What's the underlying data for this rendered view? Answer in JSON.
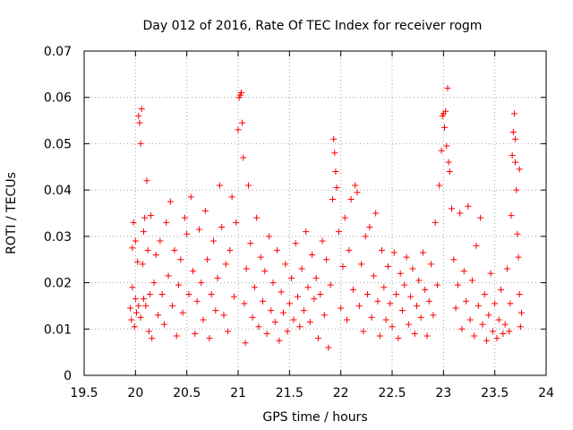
{
  "chart_data": {
    "type": "scatter",
    "title": "Day 012 of 2016, Rate Of TEC Index for receiver rogm",
    "xlabel": "GPS time / hours",
    "ylabel": "ROTI / TECUs",
    "xlim": [
      19.5,
      24
    ],
    "ylim": [
      0,
      0.07
    ],
    "xticks": [
      "19.5",
      "20",
      "20.5",
      "21",
      "21.5",
      "22",
      "22.5",
      "23",
      "23.5",
      "24"
    ],
    "yticks": [
      "0",
      "0.01",
      "0.02",
      "0.03",
      "0.04",
      "0.05",
      "0.06",
      "0.07"
    ],
    "grid": true,
    "marker": "+",
    "series": [
      {
        "name": "ROTI",
        "color": "#ff0000",
        "points": [
          [
            19.95,
            0.0145
          ],
          [
            19.96,
            0.012
          ],
          [
            19.97,
            0.0275
          ],
          [
            19.97,
            0.019
          ],
          [
            19.98,
            0.033
          ],
          [
            19.99,
            0.0105
          ],
          [
            20.0,
            0.0165
          ],
          [
            20.0,
            0.029
          ],
          [
            20.01,
            0.0135
          ],
          [
            20.02,
            0.0245
          ],
          [
            20.03,
            0.015
          ],
          [
            20.03,
            0.056
          ],
          [
            20.04,
            0.0545
          ],
          [
            20.05,
            0.05
          ],
          [
            20.05,
            0.0125
          ],
          [
            20.06,
            0.0575
          ],
          [
            20.07,
            0.024
          ],
          [
            20.08,
            0.031
          ],
          [
            20.08,
            0.0165
          ],
          [
            20.09,
            0.034
          ],
          [
            20.1,
            0.015
          ],
          [
            20.11,
            0.042
          ],
          [
            20.12,
            0.027
          ],
          [
            20.13,
            0.0095
          ],
          [
            20.14,
            0.0175
          ],
          [
            20.15,
            0.0345
          ],
          [
            20.16,
            0.008
          ],
          [
            20.18,
            0.02
          ],
          [
            20.2,
            0.026
          ],
          [
            20.22,
            0.013
          ],
          [
            20.24,
            0.029
          ],
          [
            20.26,
            0.0175
          ],
          [
            20.28,
            0.011
          ],
          [
            20.3,
            0.033
          ],
          [
            20.32,
            0.0215
          ],
          [
            20.34,
            0.0375
          ],
          [
            20.36,
            0.015
          ],
          [
            20.38,
            0.027
          ],
          [
            20.4,
            0.0085
          ],
          [
            20.42,
            0.0195
          ],
          [
            20.44,
            0.025
          ],
          [
            20.46,
            0.0135
          ],
          [
            20.48,
            0.034
          ],
          [
            20.5,
            0.0305
          ],
          [
            20.52,
            0.0175
          ],
          [
            20.54,
            0.0385
          ],
          [
            20.56,
            0.0225
          ],
          [
            20.58,
            0.009
          ],
          [
            20.6,
            0.016
          ],
          [
            20.62,
            0.0315
          ],
          [
            20.64,
            0.02
          ],
          [
            20.66,
            0.012
          ],
          [
            20.68,
            0.0355
          ],
          [
            20.7,
            0.025
          ],
          [
            20.72,
            0.008
          ],
          [
            20.74,
            0.0175
          ],
          [
            20.76,
            0.029
          ],
          [
            20.78,
            0.014
          ],
          [
            20.8,
            0.021
          ],
          [
            20.82,
            0.041
          ],
          [
            20.84,
            0.032
          ],
          [
            20.86,
            0.013
          ],
          [
            20.88,
            0.024
          ],
          [
            20.9,
            0.0095
          ],
          [
            20.92,
            0.027
          ],
          [
            20.94,
            0.0385
          ],
          [
            20.96,
            0.017
          ],
          [
            20.98,
            0.033
          ],
          [
            21.0,
            0.053
          ],
          [
            21.01,
            0.06
          ],
          [
            21.02,
            0.0605
          ],
          [
            21.03,
            0.061
          ],
          [
            21.04,
            0.0545
          ],
          [
            21.05,
            0.047
          ],
          [
            21.06,
            0.0155
          ],
          [
            21.07,
            0.007
          ],
          [
            21.08,
            0.023
          ],
          [
            21.1,
            0.041
          ],
          [
            21.12,
            0.0285
          ],
          [
            21.14,
            0.0125
          ],
          [
            21.16,
            0.019
          ],
          [
            21.18,
            0.034
          ],
          [
            21.2,
            0.0105
          ],
          [
            21.22,
            0.0255
          ],
          [
            21.24,
            0.016
          ],
          [
            21.26,
            0.0225
          ],
          [
            21.28,
            0.009
          ],
          [
            21.3,
            0.03
          ],
          [
            21.32,
            0.014
          ],
          [
            21.34,
            0.02
          ],
          [
            21.36,
            0.0115
          ],
          [
            21.38,
            0.027
          ],
          [
            21.4,
            0.0075
          ],
          [
            21.42,
            0.018
          ],
          [
            21.44,
            0.0135
          ],
          [
            21.46,
            0.024
          ],
          [
            21.48,
            0.0095
          ],
          [
            21.5,
            0.0155
          ],
          [
            21.52,
            0.021
          ],
          [
            21.54,
            0.012
          ],
          [
            21.56,
            0.0285
          ],
          [
            21.58,
            0.017
          ],
          [
            21.6,
            0.0105
          ],
          [
            21.62,
            0.023
          ],
          [
            21.64,
            0.014
          ],
          [
            21.66,
            0.031
          ],
          [
            21.68,
            0.019
          ],
          [
            21.7,
            0.0115
          ],
          [
            21.72,
            0.026
          ],
          [
            21.74,
            0.0165
          ],
          [
            21.76,
            0.021
          ],
          [
            21.78,
            0.008
          ],
          [
            21.8,
            0.0175
          ],
          [
            21.82,
            0.029
          ],
          [
            21.84,
            0.013
          ],
          [
            21.86,
            0.025
          ],
          [
            21.88,
            0.006
          ],
          [
            21.9,
            0.0195
          ],
          [
            21.92,
            0.038
          ],
          [
            21.93,
            0.051
          ],
          [
            21.94,
            0.048
          ],
          [
            21.95,
            0.044
          ],
          [
            21.96,
            0.0405
          ],
          [
            21.98,
            0.031
          ],
          [
            22.0,
            0.0145
          ],
          [
            22.02,
            0.0235
          ],
          [
            22.04,
            0.034
          ],
          [
            22.06,
            0.012
          ],
          [
            22.08,
            0.027
          ],
          [
            22.1,
            0.038
          ],
          [
            22.12,
            0.0185
          ],
          [
            22.14,
            0.041
          ],
          [
            22.16,
            0.0395
          ],
          [
            22.18,
            0.015
          ],
          [
            22.2,
            0.024
          ],
          [
            22.22,
            0.0095
          ],
          [
            22.24,
            0.03
          ],
          [
            22.26,
            0.0175
          ],
          [
            22.28,
            0.032
          ],
          [
            22.3,
            0.0125
          ],
          [
            22.32,
            0.0215
          ],
          [
            22.34,
            0.035
          ],
          [
            22.36,
            0.016
          ],
          [
            22.38,
            0.0085
          ],
          [
            22.4,
            0.027
          ],
          [
            22.42,
            0.019
          ],
          [
            22.44,
            0.012
          ],
          [
            22.46,
            0.0235
          ],
          [
            22.48,
            0.0155
          ],
          [
            22.5,
            0.0105
          ],
          [
            22.52,
            0.0265
          ],
          [
            22.54,
            0.0175
          ],
          [
            22.56,
            0.008
          ],
          [
            22.58,
            0.022
          ],
          [
            22.6,
            0.014
          ],
          [
            22.62,
            0.0195
          ],
          [
            22.64,
            0.0255
          ],
          [
            22.66,
            0.011
          ],
          [
            22.68,
            0.017
          ],
          [
            22.7,
            0.023
          ],
          [
            22.72,
            0.009
          ],
          [
            22.74,
            0.015
          ],
          [
            22.76,
            0.0205
          ],
          [
            22.78,
            0.0125
          ],
          [
            22.8,
            0.0265
          ],
          [
            22.82,
            0.0185
          ],
          [
            22.84,
            0.0085
          ],
          [
            22.86,
            0.016
          ],
          [
            22.88,
            0.024
          ],
          [
            22.9,
            0.013
          ],
          [
            22.92,
            0.033
          ],
          [
            22.94,
            0.0195
          ],
          [
            22.96,
            0.041
          ],
          [
            22.98,
            0.0485
          ],
          [
            22.99,
            0.056
          ],
          [
            23.0,
            0.0565
          ],
          [
            23.01,
            0.0535
          ],
          [
            23.02,
            0.057
          ],
          [
            23.03,
            0.0495
          ],
          [
            23.04,
            0.062
          ],
          [
            23.05,
            0.046
          ],
          [
            23.06,
            0.044
          ],
          [
            23.08,
            0.036
          ],
          [
            23.1,
            0.025
          ],
          [
            23.12,
            0.0145
          ],
          [
            23.14,
            0.0195
          ],
          [
            23.16,
            0.035
          ],
          [
            23.18,
            0.01
          ],
          [
            23.2,
            0.0225
          ],
          [
            23.22,
            0.016
          ],
          [
            23.24,
            0.0365
          ],
          [
            23.26,
            0.012
          ],
          [
            23.28,
            0.0205
          ],
          [
            23.3,
            0.0085
          ],
          [
            23.32,
            0.028
          ],
          [
            23.34,
            0.015
          ],
          [
            23.36,
            0.034
          ],
          [
            23.38,
            0.011
          ],
          [
            23.4,
            0.0175
          ],
          [
            23.42,
            0.0075
          ],
          [
            23.44,
            0.013
          ],
          [
            23.46,
            0.022
          ],
          [
            23.48,
            0.0095
          ],
          [
            23.5,
            0.0155
          ],
          [
            23.52,
            0.008
          ],
          [
            23.54,
            0.012
          ],
          [
            23.56,
            0.0185
          ],
          [
            23.58,
            0.009
          ],
          [
            23.6,
            0.011
          ],
          [
            23.62,
            0.023
          ],
          [
            23.64,
            0.0095
          ],
          [
            23.65,
            0.0155
          ],
          [
            23.66,
            0.0345
          ],
          [
            23.67,
            0.0475
          ],
          [
            23.68,
            0.0525
          ],
          [
            23.69,
            0.0565
          ],
          [
            23.7,
            0.051
          ],
          [
            23.71,
            0.04
          ],
          [
            23.72,
            0.0305
          ],
          [
            23.73,
            0.0255
          ],
          [
            23.74,
            0.0175
          ],
          [
            23.75,
            0.0105
          ],
          [
            23.76,
            0.0135
          ],
          [
            23.74,
            0.0445
          ],
          [
            23.7,
            0.046
          ]
        ]
      }
    ]
  }
}
